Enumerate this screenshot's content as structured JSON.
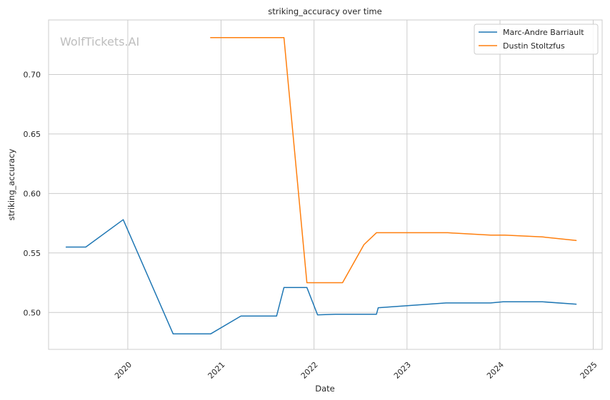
{
  "chart_data": {
    "type": "line",
    "title": "striking_accuracy over time",
    "xlabel": "Date",
    "ylabel": "striking_accuracy",
    "watermark": "WolfTickets.AI",
    "xlim": [
      "2019-02-24",
      "2025-02-05"
    ],
    "ylim": [
      0.469,
      0.7458
    ],
    "x_ticks": [
      "2020-01-01",
      "2021-01-01",
      "2022-01-01",
      "2023-01-01",
      "2024-01-01",
      "2025-01-01"
    ],
    "x_tick_labels": [
      "2020",
      "2021",
      "2022",
      "2023",
      "2024",
      "2025"
    ],
    "y_ticks": [
      0.5,
      0.55,
      0.6,
      0.65,
      0.7
    ],
    "y_tick_labels": [
      "0.50",
      "0.55",
      "0.60",
      "0.65",
      "0.70"
    ],
    "grid": true,
    "legend_position": "top-right",
    "series": [
      {
        "name": "Marc-Andre Barriault",
        "color": "#1f77b4",
        "x": [
          "2019-05-04",
          "2019-07-20",
          "2019-12-14",
          "2020-06-27",
          "2020-11-21",
          "2021-03-20",
          "2021-08-07",
          "2021-09-05",
          "2021-12-04",
          "2022-01-15",
          "2022-03-26",
          "2022-07-09",
          "2022-09-03",
          "2022-09-10",
          "2023-06-03",
          "2023-11-25",
          "2024-01-13",
          "2024-06-15",
          "2024-10-26"
        ],
        "y": [
          0.555,
          0.555,
          0.578,
          0.482,
          0.482,
          0.497,
          0.497,
          0.521,
          0.521,
          0.498,
          0.4985,
          0.4985,
          0.4985,
          0.504,
          0.508,
          0.508,
          0.509,
          0.509,
          0.507
        ]
      },
      {
        "name": "Dustin Stoltzfus",
        "color": "#ff7f0e",
        "x": [
          "2020-11-21",
          "2021-04-17",
          "2021-09-05",
          "2021-12-04",
          "2022-01-15",
          "2022-04-23",
          "2022-07-16",
          "2022-09-03",
          "2023-06-10",
          "2023-11-25",
          "2024-01-20",
          "2024-06-15",
          "2024-10-26"
        ],
        "y": [
          0.731,
          0.731,
          0.731,
          0.525,
          0.525,
          0.525,
          0.557,
          0.567,
          0.567,
          0.565,
          0.565,
          0.5635,
          0.5605
        ]
      }
    ]
  }
}
